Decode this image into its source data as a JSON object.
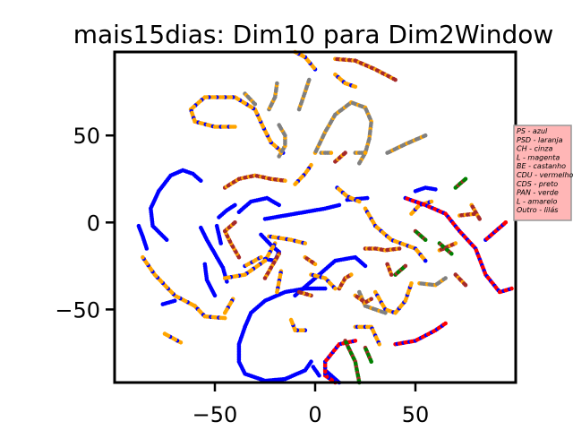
{
  "chart_data": {
    "type": "scatter",
    "title": "mais15dias: Dim10 para Dim2Window",
    "xlabel": "",
    "ylabel": "",
    "xlim": [
      -100,
      100
    ],
    "ylim": [
      -92,
      98
    ],
    "xticks": [
      -50,
      0,
      50
    ],
    "yticks": [
      -50,
      0,
      50
    ],
    "grid": false,
    "legend_placement": "right",
    "legend_entries": [
      "PS - azul",
      "PSD - laranja",
      "CH - cinza",
      "L - magenta",
      "BE - castanho",
      "CDU - vermelho",
      "CDS - preto",
      "PAN - verde",
      "L - amarelo",
      "Outro - lilás"
    ],
    "colors": {
      "PS": "#0000ff",
      "PSD": "#ffa500",
      "CH": "#808080",
      "BE": "#a52a2a",
      "CDU": "#ff0000",
      "PAN": "#008000",
      "legend_bg": "#ffb6b6"
    },
    "clusters": [
      {
        "color": "blue",
        "points": [
          [
            -78,
            18
          ],
          [
            -72,
            27
          ],
          [
            -66,
            30
          ],
          [
            -61,
            28
          ],
          [
            -57,
            24
          ]
        ]
      },
      {
        "color": "blue",
        "points": [
          [
            -78,
            18
          ],
          [
            -82,
            8
          ],
          [
            -81,
            -2
          ],
          [
            -74,
            -10
          ]
        ]
      },
      {
        "color": "blue",
        "points": [
          [
            -44,
            -34
          ],
          [
            -46,
            -26
          ],
          [
            -50,
            -18
          ],
          [
            -54,
            -10
          ],
          [
            -57,
            -3
          ]
        ]
      },
      {
        "color": "blue",
        "points": [
          [
            -55,
            -24
          ],
          [
            -54,
            -33
          ],
          [
            -50,
            -42
          ]
        ]
      },
      {
        "color": "blue",
        "points": [
          [
            -49,
            -2
          ],
          [
            -47,
            -12
          ]
        ]
      },
      {
        "color": "blue",
        "points": [
          [
            -38,
            6
          ],
          [
            -32,
            12
          ],
          [
            -24,
            14
          ],
          [
            -18,
            10
          ]
        ]
      },
      {
        "color": "blue",
        "points": [
          [
            -25,
            2
          ],
          [
            -15,
            4
          ],
          [
            -5,
            6
          ],
          [
            5,
            8
          ],
          [
            12,
            10
          ]
        ]
      },
      {
        "color": "blue",
        "points": [
          [
            -35,
            -60
          ],
          [
            -32,
            -52
          ],
          [
            -25,
            -45
          ],
          [
            -15,
            -40
          ],
          [
            -5,
            -38
          ],
          [
            5,
            -38
          ]
        ]
      },
      {
        "color": "blue",
        "points": [
          [
            -35,
            -60
          ],
          [
            -38,
            -70
          ],
          [
            -38,
            -80
          ],
          [
            -35,
            -87
          ],
          [
            -25,
            -91
          ],
          [
            -15,
            -90
          ],
          [
            -5,
            -85
          ],
          [
            -2,
            -80
          ]
        ]
      },
      {
        "color": "blue",
        "points": [
          [
            -10,
            -42
          ],
          [
            0,
            -32
          ],
          [
            10,
            -22
          ],
          [
            20,
            -20
          ],
          [
            25,
            -25
          ]
        ]
      },
      {
        "color": "blue",
        "points": [
          [
            -1,
            -83
          ],
          [
            2,
            -88
          ]
        ]
      },
      {
        "color": "blue",
        "points": [
          [
            5,
            -85
          ],
          [
            12,
            -92
          ]
        ]
      },
      {
        "color": "blue",
        "points": [
          [
            -27,
            -7
          ],
          [
            -22,
            -13
          ],
          [
            -18,
            -17
          ],
          [
            -20,
            -22
          ],
          [
            -25,
            -21
          ]
        ]
      },
      {
        "color": "blue",
        "points": [
          [
            50,
            18
          ],
          [
            55,
            20
          ],
          [
            60,
            19
          ]
        ]
      },
      {
        "color": "blue",
        "points": [
          [
            -70,
            -45
          ],
          [
            -76,
            -47
          ]
        ]
      },
      {
        "color": "blue",
        "points": [
          [
            -88,
            -2
          ],
          [
            -86,
            -8
          ],
          [
            -84,
            -15
          ]
        ]
      },
      {
        "color": "blue",
        "points": [
          [
            -48,
            3
          ],
          [
            -44,
            7
          ],
          [
            -40,
            10
          ]
        ]
      },
      {
        "color": "blue",
        "points": [
          [
            16,
            13
          ],
          [
            26,
            14
          ]
        ]
      },
      {
        "color": "orange",
        "points": [
          [
            -67,
            -69
          ],
          [
            -75,
            -64
          ]
        ]
      },
      {
        "color": "orange",
        "points": [
          [
            -60,
            -48
          ],
          [
            -70,
            -42
          ],
          [
            -80,
            -30
          ],
          [
            -86,
            -20
          ]
        ]
      },
      {
        "color": "orange",
        "points": [
          [
            -60,
            -48
          ],
          [
            -55,
            -54
          ],
          [
            -45,
            -55
          ]
        ]
      },
      {
        "color": "orange",
        "points": [
          [
            -16,
            40
          ],
          [
            -22,
            46
          ],
          [
            -26,
            55
          ],
          [
            -30,
            65
          ],
          [
            -40,
            72
          ],
          [
            -55,
            72
          ],
          [
            -62,
            65
          ],
          [
            -60,
            58
          ],
          [
            -50,
            55
          ],
          [
            -40,
            55
          ]
        ]
      },
      {
        "color": "orange",
        "points": [
          [
            -5,
            -62
          ],
          [
            -10,
            -62
          ],
          [
            -12,
            -56
          ]
        ]
      },
      {
        "color": "orange",
        "points": [
          [
            0,
            88
          ],
          [
            -5,
            95
          ],
          [
            -10,
            98
          ]
        ]
      },
      {
        "color": "orange",
        "points": [
          [
            -20,
            -12
          ],
          [
            -25,
            -22
          ],
          [
            -35,
            -30
          ],
          [
            -45,
            -32
          ]
        ]
      },
      {
        "color": "orange",
        "points": [
          [
            11,
            20
          ],
          [
            16,
            15
          ],
          [
            22,
            12
          ]
        ]
      },
      {
        "color": "orange",
        "points": [
          [
            -23,
            -8
          ],
          [
            -12,
            -10
          ],
          [
            -5,
            -12
          ]
        ]
      },
      {
        "color": "orange",
        "points": [
          [
            -2,
            33
          ],
          [
            -5,
            28
          ],
          [
            -10,
            22
          ]
        ]
      },
      {
        "color": "orange",
        "points": [
          [
            -17,
            -28
          ],
          [
            -19,
            -40
          ]
        ]
      },
      {
        "color": "orange",
        "points": [
          [
            -2,
            -30
          ],
          [
            5,
            -32
          ],
          [
            10,
            -38
          ]
        ]
      },
      {
        "color": "orange",
        "points": [
          [
            25,
            8
          ],
          [
            30,
            -2
          ],
          [
            38,
            -10
          ],
          [
            50,
            -15
          ],
          [
            55,
            -22
          ]
        ]
      },
      {
        "color": "orange",
        "points": [
          [
            48,
            5
          ],
          [
            52,
            10
          ],
          [
            58,
            12
          ]
        ]
      },
      {
        "color": "orange",
        "points": [
          [
            10,
            85
          ],
          [
            15,
            80
          ],
          [
            20,
            78
          ]
        ]
      },
      {
        "color": "orange",
        "points": [
          [
            -41,
            -44
          ],
          [
            -45,
            -52
          ]
        ]
      },
      {
        "color": "orange",
        "points": [
          [
            -35,
            -25
          ],
          [
            -27,
            -20
          ]
        ]
      },
      {
        "color": "orange",
        "points": [
          [
            30,
            -40
          ],
          [
            35,
            -50
          ],
          [
            40,
            -52
          ],
          [
            45,
            -45
          ],
          [
            48,
            -35
          ]
        ]
      },
      {
        "color": "orange",
        "points": [
          [
            20,
            -60
          ],
          [
            28,
            -60
          ],
          [
            32,
            -70
          ]
        ]
      },
      {
        "color": "gray",
        "points": [
          [
            -18,
            38
          ],
          [
            -15,
            44
          ],
          [
            -15,
            50
          ],
          [
            -18,
            56
          ]
        ]
      },
      {
        "color": "gray",
        "points": [
          [
            0,
            40
          ],
          [
            5,
            52
          ],
          [
            10,
            62
          ],
          [
            18,
            69
          ],
          [
            25,
            66
          ],
          [
            28,
            58
          ],
          [
            27,
            48
          ],
          [
            25,
            40
          ],
          [
            22,
            34
          ]
        ]
      },
      {
        "color": "gray",
        "points": [
          [
            -23,
            65
          ],
          [
            -20,
            72
          ],
          [
            -19,
            80
          ]
        ]
      },
      {
        "color": "gray",
        "points": [
          [
            -8,
            65
          ],
          [
            -5,
            75
          ],
          [
            -3,
            82
          ]
        ]
      },
      {
        "color": "gray",
        "points": [
          [
            -35,
            74
          ],
          [
            -30,
            68
          ]
        ]
      },
      {
        "color": "gray",
        "points": [
          [
            3,
            40
          ],
          [
            8,
            40
          ]
        ]
      },
      {
        "color": "gray",
        "points": [
          [
            36,
            40
          ],
          [
            45,
            45
          ],
          [
            55,
            50
          ]
        ]
      },
      {
        "color": "gray",
        "points": [
          [
            20,
            40
          ],
          [
            25,
            40
          ]
        ]
      },
      {
        "color": "gray",
        "points": [
          [
            22,
            -40
          ],
          [
            25,
            -48
          ],
          [
            30,
            -50
          ],
          [
            35,
            -52
          ]
        ]
      },
      {
        "color": "gray",
        "points": [
          [
            52,
            -35
          ],
          [
            60,
            -36
          ],
          [
            65,
            -32
          ]
        ]
      },
      {
        "color": "brown",
        "points": [
          [
            -45,
            20
          ],
          [
            -38,
            25
          ],
          [
            -30,
            27
          ],
          [
            -22,
            25
          ],
          [
            -15,
            24
          ]
        ]
      },
      {
        "color": "brown",
        "points": [
          [
            -38,
            -20
          ],
          [
            -42,
            -12
          ],
          [
            -45,
            -5
          ],
          [
            -40,
            0
          ]
        ]
      },
      {
        "color": "brown",
        "points": [
          [
            10,
            94
          ],
          [
            20,
            93
          ],
          [
            30,
            88
          ],
          [
            40,
            82
          ]
        ]
      },
      {
        "color": "brown",
        "points": [
          [
            20,
            -42
          ],
          [
            25,
            -46
          ],
          [
            28,
            -44
          ]
        ]
      },
      {
        "color": "brown",
        "points": [
          [
            25,
            -15
          ],
          [
            30,
            -15
          ],
          [
            35,
            -16
          ],
          [
            42,
            -15
          ]
        ]
      },
      {
        "color": "brown",
        "points": [
          [
            12,
            -38
          ],
          [
            15,
            -32
          ],
          [
            18,
            -30
          ]
        ]
      },
      {
        "color": "brown",
        "points": [
          [
            36,
            -24
          ],
          [
            38,
            -30
          ]
        ]
      },
      {
        "color": "brown",
        "points": [
          [
            -18,
            -18
          ],
          [
            -22,
            -26
          ],
          [
            -25,
            -32
          ]
        ]
      },
      {
        "color": "brown",
        "points": [
          [
            -2,
            -42
          ],
          [
            -8,
            -40
          ]
        ]
      },
      {
        "color": "brown",
        "points": [
          [
            62,
            -16
          ],
          [
            70,
            -12
          ]
        ]
      },
      {
        "color": "brown",
        "points": [
          [
            70,
            -30
          ],
          [
            75,
            -36
          ]
        ]
      },
      {
        "color": "brown",
        "points": [
          [
            72,
            4
          ],
          [
            80,
            5
          ]
        ]
      },
      {
        "color": "brown",
        "points": [
          [
            -5,
            -20
          ],
          [
            0,
            -24
          ]
        ]
      },
      {
        "color": "brown",
        "points": [
          [
            10,
            35
          ],
          [
            15,
            40
          ]
        ]
      },
      {
        "color": "brown",
        "points": [
          [
            78,
            10
          ],
          [
            82,
            2
          ]
        ]
      },
      {
        "color": "red",
        "points": [
          [
            45,
            14
          ],
          [
            55,
            10
          ],
          [
            65,
            5
          ],
          [
            72,
            -5
          ],
          [
            80,
            -15
          ],
          [
            85,
            -30
          ],
          [
            92,
            -40
          ],
          [
            98,
            -38
          ]
        ]
      },
      {
        "color": "red",
        "points": [
          [
            10,
            -92
          ],
          [
            5,
            -88
          ],
          [
            5,
            -80
          ],
          [
            12,
            -70
          ],
          [
            20,
            -68
          ]
        ]
      },
      {
        "color": "red",
        "points": [
          [
            40,
            -70
          ],
          [
            50,
            -68
          ],
          [
            60,
            -62
          ],
          [
            65,
            -58
          ]
        ]
      },
      {
        "color": "red",
        "points": [
          [
            85,
            -10
          ],
          [
            90,
            -5
          ],
          [
            95,
            0
          ]
        ]
      },
      {
        "color": "green",
        "points": [
          [
            15,
            -68
          ],
          [
            20,
            -80
          ],
          [
            22,
            -92
          ]
        ]
      },
      {
        "color": "green",
        "points": [
          [
            25,
            -72
          ],
          [
            28,
            -80
          ]
        ]
      },
      {
        "color": "green",
        "points": [
          [
            50,
            -5
          ],
          [
            55,
            -10
          ]
        ]
      },
      {
        "color": "green",
        "points": [
          [
            62,
            -12
          ],
          [
            68,
            -18
          ]
        ]
      },
      {
        "color": "green",
        "points": [
          [
            40,
            -30
          ],
          [
            45,
            -25
          ]
        ]
      },
      {
        "color": "green",
        "points": [
          [
            70,
            20
          ],
          [
            75,
            25
          ]
        ]
      }
    ]
  }
}
